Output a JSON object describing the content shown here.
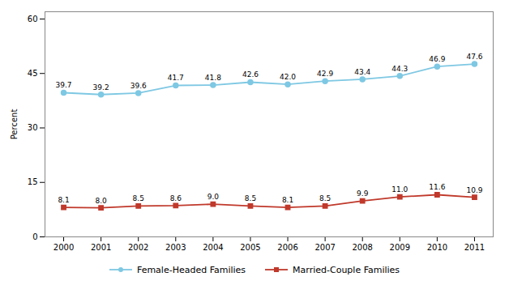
{
  "chart_data": {
    "type": "line",
    "x": [
      2000,
      2001,
      2002,
      2003,
      2004,
      2005,
      2006,
      2007,
      2008,
      2009,
      2010,
      2011
    ],
    "series": [
      {
        "name": "Female-Headed Families",
        "color": "#7EC8E3",
        "marker": "circle",
        "values": [
          39.7,
          39.2,
          39.6,
          41.7,
          41.8,
          42.6,
          42.0,
          42.9,
          43.4,
          44.3,
          46.9,
          47.6
        ],
        "value_labels": [
          "39.7",
          "39.2",
          "39.6",
          "41.7",
          "41.8",
          "42.6",
          "42.0",
          "42.9",
          "43.4",
          "44.3",
          "46.9",
          "47.6"
        ]
      },
      {
        "name": "Married-Couple Families",
        "color": "#C0392B",
        "marker": "square",
        "values": [
          8.1,
          8.0,
          8.5,
          8.6,
          9.0,
          8.5,
          8.1,
          8.5,
          9.9,
          11.0,
          11.6,
          10.9
        ],
        "value_labels": [
          "8.1",
          "8.0",
          "8.5",
          "8.6",
          "9.0",
          "8.5",
          "8.1",
          "8.5",
          "9.9",
          "11.0",
          "11.6",
          "10.9"
        ]
      }
    ],
    "ylabel": "Percent",
    "xlim": [
      1999.5,
      2011.5
    ],
    "xticks": [
      2000,
      2001,
      2002,
      2003,
      2004,
      2005,
      2006,
      2007,
      2008,
      2009,
      2010,
      2011
    ],
    "ylim": [
      0,
      62
    ],
    "yticks": [
      0,
      15,
      30,
      45,
      60
    ],
    "grid": false,
    "legend": "bottom",
    "data_labels": true
  }
}
